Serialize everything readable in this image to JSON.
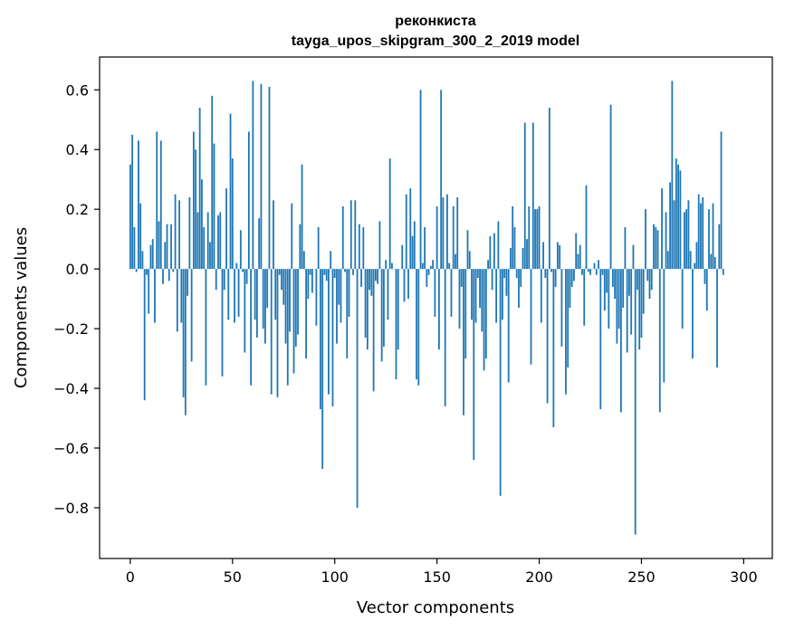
{
  "chart_data": {
    "type": "bar",
    "title": "реконкиста",
    "subtitle": "tayga_upos_skipgram_300_2_2019 model",
    "xlabel": "Vector components",
    "ylabel": "Components values",
    "xlim": [
      -15,
      314
    ],
    "ylim": [
      -0.97,
      0.71
    ],
    "xticks": [
      0,
      50,
      100,
      150,
      200,
      250,
      300
    ],
    "yticks": [
      -0.8,
      -0.6,
      -0.4,
      -0.2,
      0.0,
      0.2,
      0.4,
      0.6
    ],
    "ytick_labels": [
      "−0.8",
      "−0.6",
      "−0.4",
      "−0.2",
      "0.0",
      "0.2",
      "0.4",
      "0.6"
    ],
    "bar_color": "#1f77b4",
    "grid": false,
    "values": [
      0.35,
      0.45,
      0.14,
      -0.01,
      0.43,
      0.22,
      0.06,
      -0.44,
      -0.02,
      -0.15,
      0.08,
      0.1,
      -0.18,
      0.46,
      0.16,
      0.43,
      -0.05,
      0.09,
      0.15,
      -0.04,
      0.15,
      -0.01,
      0.25,
      -0.21,
      0.23,
      -0.18,
      -0.43,
      -0.49,
      -0.09,
      0.24,
      -0.31,
      0.46,
      0.4,
      0.19,
      0.54,
      0.3,
      0.14,
      -0.39,
      0.19,
      0.09,
      0.58,
      0.42,
      -0.07,
      0.18,
      0.19,
      -0.36,
      -0.07,
      0.27,
      -0.17,
      0.52,
      0.37,
      -0.18,
      0.02,
      -0.16,
      0.13,
      -0.01,
      -0.28,
      -0.05,
      0.46,
      -0.39,
      0.63,
      -0.17,
      -0.23,
      0.17,
      0.62,
      -0.2,
      -0.25,
      -0.13,
      0.61,
      -0.42,
      0.23,
      -0.17,
      -0.43,
      -0.02,
      -0.07,
      -0.12,
      -0.25,
      -0.39,
      -0.21,
      0.22,
      -0.35,
      -0.26,
      -0.22,
      0.15,
      0.35,
      0.06,
      -0.3,
      -0.1,
      -0.02,
      -0.08,
      0.0,
      -0.19,
      0.14,
      -0.47,
      -0.67,
      -0.02,
      -0.04,
      -0.42,
      0.06,
      -0.46,
      -0.03,
      -0.25,
      -0.12,
      -0.18,
      0.21,
      -0.01,
      -0.3,
      -0.16,
      0.23,
      -0.02,
      0.23,
      -0.8,
      0.15,
      -0.06,
      0.14,
      -0.23,
      -0.27,
      -0.07,
      -0.09,
      -0.41,
      -0.04,
      -0.05,
      0.16,
      -0.31,
      -0.26,
      0.03,
      -0.17,
      0.37,
      0.02,
      0.0,
      -0.37,
      -0.27,
      0.0,
      0.08,
      -0.11,
      0.25,
      -0.1,
      0.27,
      0.11,
      0.16,
      -0.37,
      -0.39,
      0.6,
      0.02,
      0.14,
      -0.06,
      -0.02,
      0.01,
      0.03,
      -0.16,
      0.21,
      -0.27,
      0.6,
      0.24,
      -0.46,
      0.25,
      0.02,
      -0.16,
      0.21,
      0.05,
      0.24,
      -0.2,
      -0.06,
      -0.49,
      -0.3,
      0.13,
      0.06,
      -0.17,
      -0.64,
      -0.18,
      -0.03,
      -0.13,
      -0.21,
      -0.34,
      -0.3,
      0.03,
      0.11,
      -0.07,
      0.12,
      -0.18,
      0.16,
      -0.76,
      -0.17,
      -0.03,
      -0.09,
      -0.38,
      0.07,
      0.21,
      0.14,
      -0.03,
      -0.13,
      -0.06,
      0.07,
      0.49,
      0.1,
      0.21,
      -0.32,
      0.49,
      0.2,
      0.2,
      0.21,
      -0.18,
      0.09,
      -0.03,
      -0.45,
      0.54,
      -0.01,
      -0.53,
      -0.06,
      0.09,
      0.08,
      -0.26,
      0.0,
      -0.42,
      -0.33,
      -0.13,
      -0.06,
      -0.04,
      0.12,
      0.05,
      0.08,
      -0.02,
      -0.19,
      0.28,
      -0.01,
      -0.02,
      0.0,
      0.02,
      -0.02,
      0.03,
      -0.47,
      -0.02,
      -0.14,
      -0.08,
      -0.2,
      0.55,
      -0.06,
      -0.1,
      -0.25,
      -0.2,
      -0.48,
      -0.13,
      0.14,
      -0.28,
      -0.09,
      -0.22,
      0.08,
      -0.89,
      -0.07,
      -0.27,
      -0.23,
      -0.15,
      0.2,
      -0.04,
      -0.1,
      -0.07,
      0.15,
      0.14,
      0.13,
      -0.48,
      0.27,
      -0.38,
      0.19,
      0.06,
      0.29,
      0.63,
      0.23,
      0.37,
      0.35,
      0.33,
      -0.2,
      0.19,
      0.2,
      0.23,
      0.06,
      -0.3,
      0.02,
      0.09,
      0.25,
      0.22,
      0.24,
      -0.05,
      -0.14,
      0.2,
      0.05,
      0.22,
      0.04,
      -0.33,
      0.15,
      0.46,
      -0.02
    ]
  }
}
